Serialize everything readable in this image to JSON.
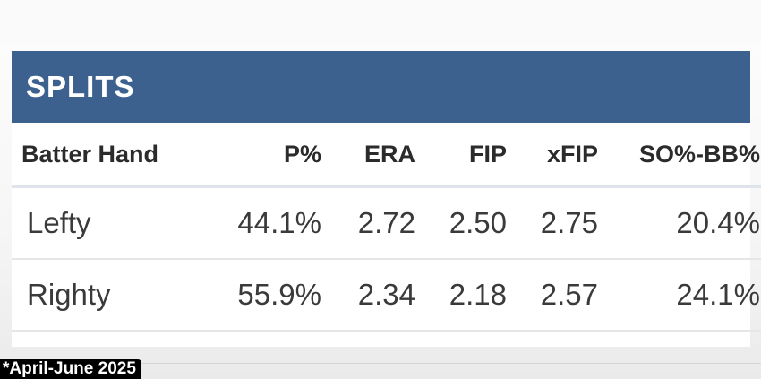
{
  "section_title": "SPLITS",
  "columns": [
    "Batter Hand",
    "P%",
    "ERA",
    "FIP",
    "xFIP",
    "SO%-BB%"
  ],
  "rows": [
    {
      "hand": "Lefty",
      "p_pct": "44.1%",
      "era": "2.72",
      "fip": "2.50",
      "xfip": "2.75",
      "so_bb": "20.4%"
    },
    {
      "hand": "Righty",
      "p_pct": "55.9%",
      "era": "2.34",
      "fip": "2.18",
      "xfip": "2.57",
      "so_bb": "24.1%"
    }
  ],
  "footnote": "*April-June 2025",
  "colors": {
    "header_band": "#3d618e",
    "header_text": "#ffffff",
    "footnote_bg": "#000000"
  }
}
